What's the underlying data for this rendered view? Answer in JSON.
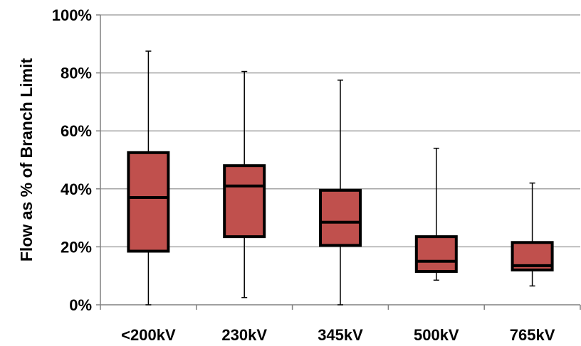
{
  "chart_data": {
    "type": "box",
    "title": "",
    "xlabel": "",
    "ylabel": "Flow as % of Branch Limit",
    "ylim": [
      0,
      100
    ],
    "yticks": [
      0,
      20,
      40,
      60,
      80,
      100
    ],
    "ytick_labels": [
      "0%",
      "20%",
      "40%",
      "60%",
      "80%",
      "100%"
    ],
    "grid": true,
    "legend": "none",
    "categories": [
      "<200kV",
      "230kV",
      "345kV",
      "500kV",
      "765kV"
    ],
    "boxes": [
      {
        "category": "<200kV",
        "min": 0,
        "q1": 18.5,
        "median": 37,
        "q3": 52.5,
        "max": 87.5
      },
      {
        "category": "230kV",
        "min": 2.5,
        "q1": 23.5,
        "median": 41,
        "q3": 48,
        "max": 80.5
      },
      {
        "category": "345kV",
        "min": 0,
        "q1": 20.5,
        "median": 28.5,
        "q3": 39.5,
        "max": 77.5
      },
      {
        "category": "500kV",
        "min": 8.5,
        "q1": 11.5,
        "median": 15,
        "q3": 23.5,
        "max": 54
      },
      {
        "category": "765kV",
        "min": 6.5,
        "q1": 12,
        "median": 13.5,
        "q3": 21.5,
        "max": 42
      }
    ],
    "colors": {
      "box_fill": "#c0504d",
      "box_stroke": "#000000",
      "grid": "#a6a6a6",
      "axis": "#808080"
    }
  }
}
